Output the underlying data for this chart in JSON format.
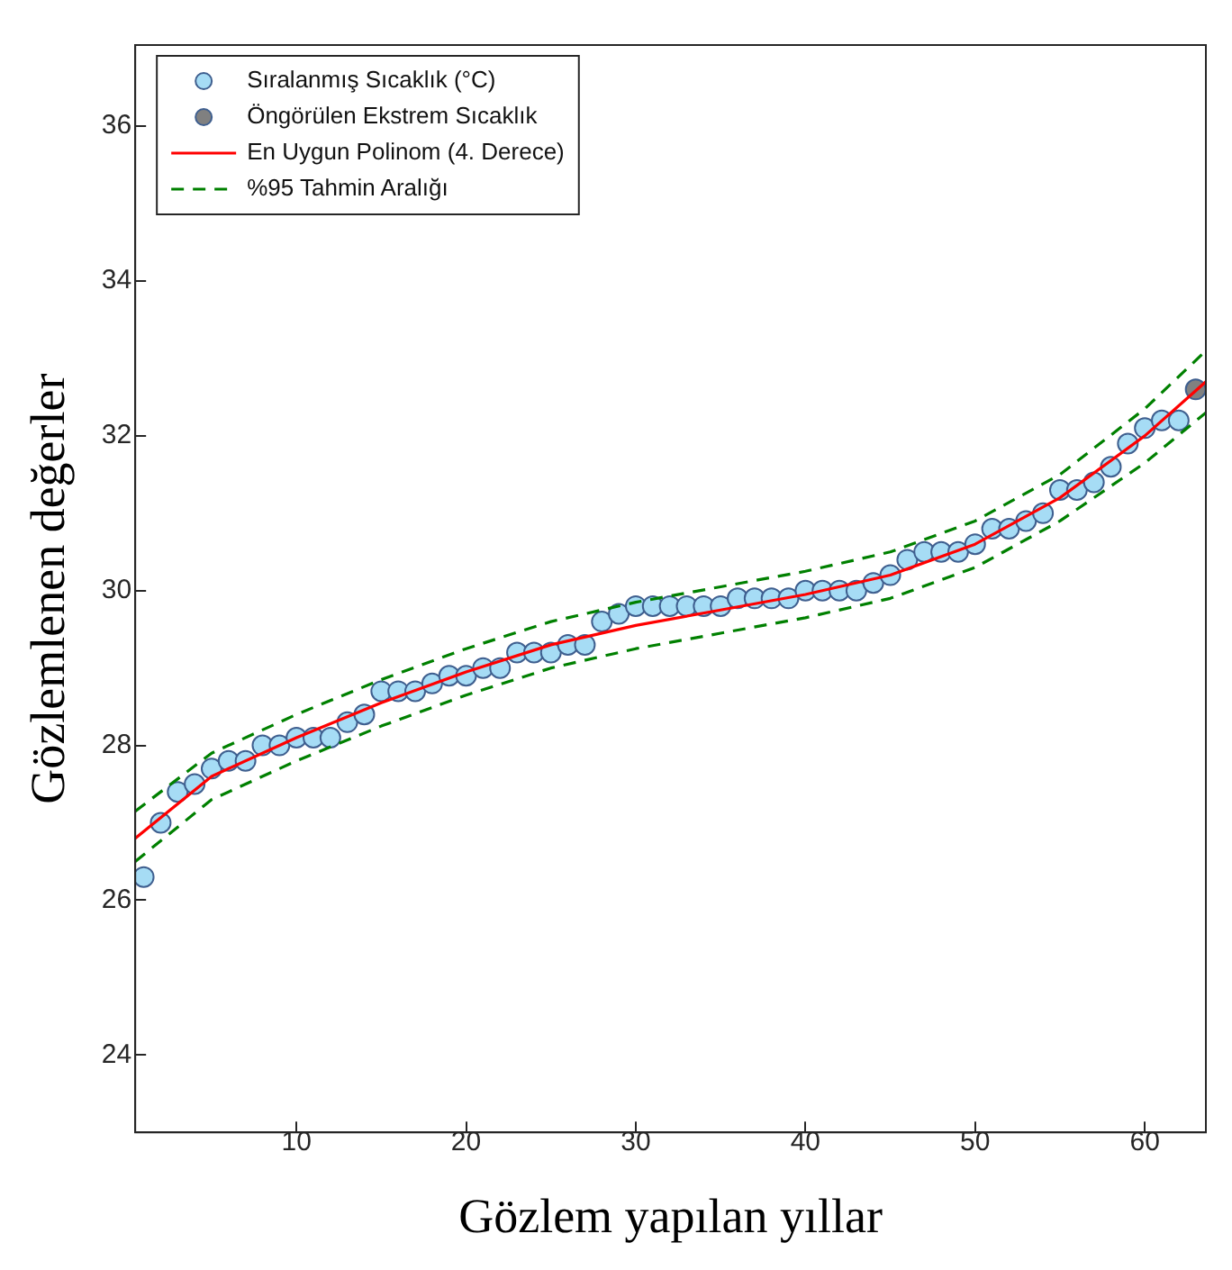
{
  "chart_data": {
    "type": "scatter",
    "xlabel": "Gözlem yapılan yıllar",
    "ylabel": "Gözlemlenen değerler",
    "xlim": [
      0.5,
      63.6
    ],
    "xticks": [
      10,
      20,
      30,
      40,
      50,
      60
    ],
    "ylim": [
      23,
      37.05
    ],
    "yticks": [
      24,
      26,
      28,
      30,
      32,
      34,
      36
    ],
    "grid": false,
    "legend": "top left",
    "marker": "circle",
    "series": [
      {
        "name": "Sıralanmış Sıcaklık (°C)",
        "type": "scatter",
        "color": "#a6dcf5",
        "x": [
          1,
          2,
          3,
          4,
          5,
          6,
          7,
          8,
          9,
          10,
          11,
          12,
          13,
          14,
          15,
          16,
          17,
          18,
          19,
          20,
          21,
          22,
          23,
          24,
          25,
          26,
          27,
          28,
          29,
          30,
          31,
          32,
          33,
          34,
          35,
          36,
          37,
          38,
          39,
          40,
          41,
          42,
          43,
          44,
          45,
          46,
          47,
          48,
          49,
          50,
          51,
          52,
          53,
          54,
          55,
          56,
          57,
          58,
          59,
          60,
          61,
          62
        ],
        "values": [
          26.3,
          27.0,
          27.4,
          27.5,
          27.7,
          27.8,
          27.8,
          28.0,
          28.0,
          28.1,
          28.1,
          28.1,
          28.3,
          28.4,
          28.7,
          28.7,
          28.7,
          28.8,
          28.9,
          28.9,
          29.0,
          29.0,
          29.2,
          29.2,
          29.2,
          29.3,
          29.3,
          29.6,
          29.7,
          29.8,
          29.8,
          29.8,
          29.8,
          29.8,
          29.8,
          29.9,
          29.9,
          29.9,
          29.9,
          30.0,
          30.0,
          30.0,
          30.0,
          30.1,
          30.2,
          30.4,
          30.5,
          30.5,
          30.5,
          30.6,
          30.8,
          30.8,
          30.9,
          31.0,
          31.3,
          31.3,
          31.4,
          31.6,
          31.9,
          32.1,
          32.2,
          32.2
        ]
      },
      {
        "name": "Öngörülen Ekstrem Sıcaklık",
        "type": "scatter",
        "color": "#808080",
        "x": [
          63
        ],
        "values": [
          32.6
        ]
      },
      {
        "name": "En Uygun Polinom (4. Derece)",
        "type": "line",
        "color": "#ff0000",
        "line_style": "solid",
        "marker": "none",
        "x": [
          0.5,
          5,
          10,
          15,
          20,
          25,
          30,
          35,
          40,
          45,
          50,
          55,
          60,
          63.6
        ],
        "values": [
          26.8,
          27.6,
          28.1,
          28.55,
          28.95,
          29.3,
          29.55,
          29.75,
          29.95,
          30.2,
          30.6,
          31.2,
          32.0,
          32.7
        ]
      },
      {
        "name": "%95 Tahmin Aralığı",
        "type": "line",
        "color": "#008000",
        "line_style": "dashed",
        "marker": "none",
        "x": [
          0.5,
          5,
          10,
          15,
          20,
          25,
          30,
          35,
          40,
          45,
          50,
          55,
          60,
          63.6
        ],
        "values": [
          27.15,
          27.9,
          28.4,
          28.85,
          29.25,
          29.6,
          29.85,
          30.05,
          30.25,
          30.5,
          30.9,
          31.5,
          32.35,
          33.1
        ]
      },
      {
        "type": "line",
        "color": "#008000",
        "line_style": "dashed",
        "marker": "none",
        "x": [
          0.5,
          5,
          10,
          15,
          20,
          25,
          30,
          35,
          40,
          45,
          50,
          55,
          60,
          63.6
        ],
        "values": [
          26.5,
          27.3,
          27.8,
          28.25,
          28.65,
          29.0,
          29.25,
          29.45,
          29.65,
          29.9,
          30.3,
          30.9,
          31.65,
          32.3
        ]
      }
    ]
  }
}
